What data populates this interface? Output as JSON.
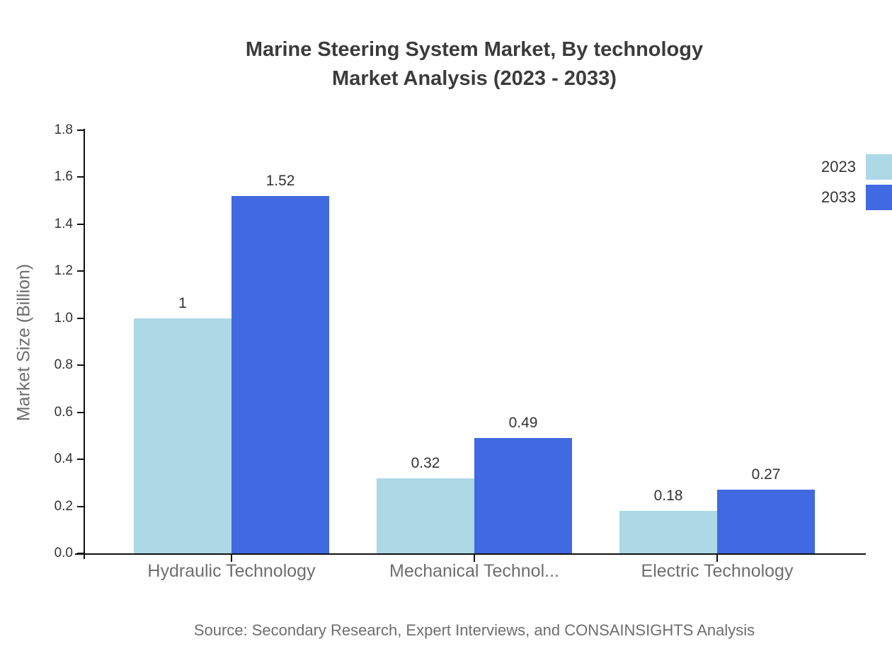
{
  "title": {
    "line1": "Marine Steering System Market, By technology",
    "line2": "Market Analysis (2023 - 2033)"
  },
  "source": "Source: Secondary Research, Expert Interviews, and CONSAINSIGHTS Analysis",
  "chart_data": {
    "type": "bar",
    "title": "Marine Steering System Market, By technology Market Analysis (2023 - 2033)",
    "categories": [
      "Hydraulic Technology",
      "Mechanical Technol...",
      "Electric Technology"
    ],
    "series": [
      {
        "name": "2023",
        "color": "#ADD8E6",
        "values": [
          1,
          0.32,
          0.18
        ],
        "labels": [
          "1",
          "0.32",
          "0.18"
        ]
      },
      {
        "name": "2033",
        "color": "#4169E1",
        "values": [
          1.52,
          0.49,
          0.27
        ],
        "labels": [
          "1.52",
          "0.49",
          "0.27"
        ]
      }
    ],
    "xlabel": "",
    "ylabel": "Market Size (Billion)",
    "ylim": [
      0,
      1.8
    ],
    "ytick_step": 0.2,
    "legend_position": "top-right",
    "grid": false
  },
  "colors": {
    "series_2023": "#ADD8E6",
    "series_2033": "#4169E1",
    "axis": "#111111",
    "title_text": "#3b3b3b",
    "tick_text": "#333333",
    "muted_text": "#6e6e6e"
  }
}
